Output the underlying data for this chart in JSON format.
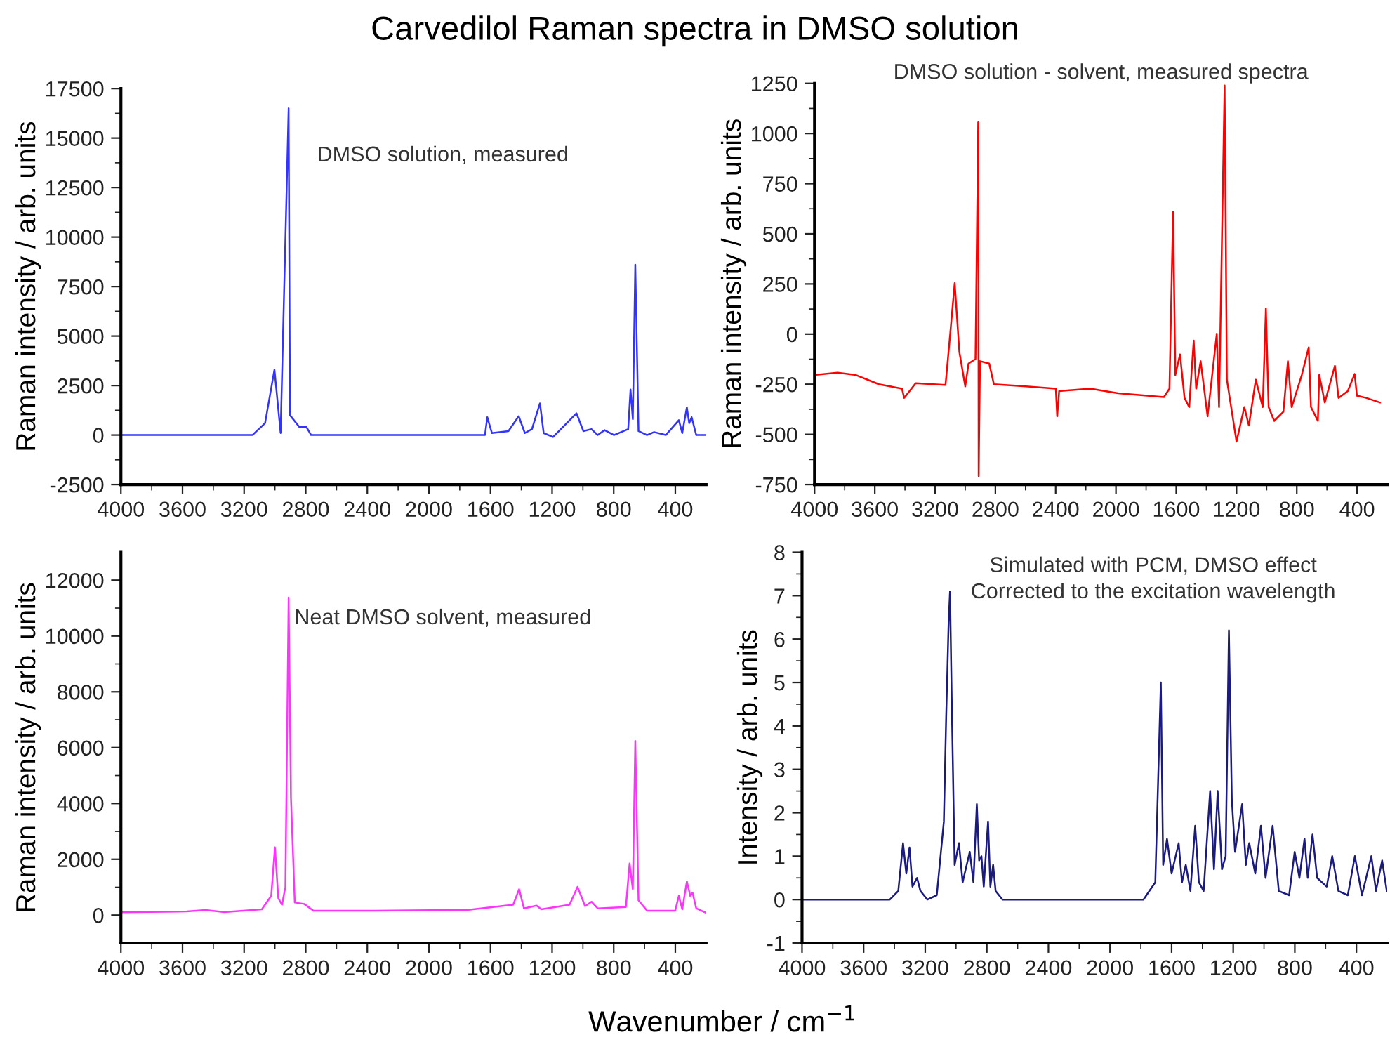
{
  "chart_data": [
    {
      "type": "line",
      "title": "Carvedilol Raman spectra in DMSO solution",
      "ylabel": "Raman intensity / arb. units",
      "annotations": [
        "DMSO solution, measured"
      ],
      "xlim": [
        4000,
        200
      ],
      "xticks": [
        4000,
        3600,
        3200,
        2800,
        2400,
        2000,
        1600,
        1200,
        800,
        400
      ],
      "ylim": [
        -2500,
        17500
      ],
      "yticks": [
        -2500,
        0,
        2500,
        5000,
        7500,
        10000,
        12500,
        15000,
        17500
      ],
      "grid": false,
      "legend": false,
      "series": [
        {
          "color": "#3333ff",
          "x": [
            4000,
            3500,
            3146,
            3064,
            3003,
            2963,
            2911,
            2902,
            2841,
            2795,
            2765,
            1636,
            1621,
            1591,
            1484,
            1417,
            1377,
            1331,
            1279,
            1255,
            1194,
            1042,
            997,
            945,
            904,
            859,
            798,
            706,
            691,
            676,
            660,
            639,
            584,
            538,
            462,
            377,
            355,
            325,
            310,
            294,
            264,
            200
          ],
          "values": [
            0,
            0,
            0,
            600,
            3300,
            100,
            16500,
            1000,
            400,
            400,
            0,
            0,
            900,
            100,
            200,
            950,
            100,
            300,
            1600,
            100,
            -100,
            1100,
            200,
            300,
            0,
            250,
            0,
            300,
            2300,
            800,
            8600,
            200,
            0,
            150,
            0,
            750,
            100,
            1400,
            600,
            900,
            0,
            0
          ]
        }
      ]
    },
    {
      "type": "line",
      "ylabel": "Raman intensity / arb. units",
      "annotations": [
        "DMSO solution - solvent, measured spectra"
      ],
      "xlim": [
        4000,
        200
      ],
      "xticks": [
        4000,
        3600,
        3200,
        2800,
        2400,
        2000,
        1600,
        1200,
        800,
        400
      ],
      "ylim": [
        -750,
        1250
      ],
      "yticks": [
        -750,
        -500,
        -250,
        0,
        250,
        500,
        750,
        1000,
        1250
      ],
      "grid": false,
      "legend": false,
      "series": [
        {
          "color": "#ff0000",
          "x": [
            4000,
            3848,
            3726,
            3573,
            3420,
            3405,
            3329,
            3131,
            3100,
            3070,
            3039,
            3000,
            2978,
            2932,
            2914,
            2911,
            2902,
            2841,
            2810,
            2597,
            2399,
            2390,
            2377,
            2170,
            1987,
            1682,
            1645,
            1621,
            1606,
            1575,
            1545,
            1514,
            1484,
            1468,
            1438,
            1392,
            1331,
            1316,
            1279,
            1264,
            1200,
            1148,
            1118,
            1072,
            1026,
            1005,
            987,
            950,
            889,
            859,
            834,
            767,
            721,
            706,
            660,
            651,
            614,
            547,
            523,
            462,
            416,
            401,
            340,
            248
          ],
          "values": [
            -204,
            -192,
            -204,
            -250,
            -272,
            -318,
            -245,
            -254,
            0,
            254,
            -89,
            -261,
            -147,
            -124,
            1056,
            -708,
            -135,
            -147,
            -250,
            -261,
            -272,
            -410,
            -284,
            -272,
            -295,
            -314,
            -272,
            609,
            -204,
            -101,
            -318,
            -364,
            -32,
            -272,
            -135,
            -410,
            2,
            -364,
            1239,
            -227,
            -536,
            -364,
            -456,
            -227,
            -364,
            128,
            -364,
            -433,
            -387,
            -135,
            -364,
            -204,
            -66,
            -364,
            -433,
            -204,
            -341,
            -158,
            -318,
            -284,
            -199,
            -307,
            -318,
            -341
          ]
        }
      ]
    },
    {
      "type": "line",
      "ylabel": "Raman intensity / arb. units",
      "xlabel": "Wavenumber / cm$^{−1}$",
      "annotations": [
        "Neat DMSO solvent, measured"
      ],
      "xlim": [
        4000,
        200
      ],
      "xticks": [
        4000,
        3600,
        3200,
        2800,
        2400,
        2000,
        1600,
        1200,
        800,
        400
      ],
      "ylim": [
        -1000,
        13000
      ],
      "yticks": [
        0,
        2000,
        4000,
        6000,
        8000,
        10000,
        12000
      ],
      "grid": false,
      "legend": false,
      "series": [
        {
          "color": "#ff33ff",
          "x": [
            4000,
            3573,
            3451,
            3329,
            3085,
            3024,
            3000,
            2978,
            2954,
            2932,
            2911,
            2896,
            2871,
            2810,
            2750,
            2353,
            1743,
            1453,
            1414,
            1383,
            1301,
            1270,
            1087,
            1035,
            986,
            944,
            904,
            721,
            697,
            676,
            660,
            639,
            584,
            401,
            377,
            355,
            325,
            303,
            288,
            264,
            200
          ],
          "values": [
            100,
            130,
            180,
            110,
            210,
            690,
            2430,
            610,
            370,
            1010,
            11380,
            4230,
            450,
            400,
            160,
            160,
            190,
            370,
            930,
            240,
            340,
            210,
            370,
            1010,
            320,
            480,
            240,
            290,
            1850,
            930,
            6240,
            530,
            160,
            160,
            690,
            210,
            1210,
            690,
            800,
            240,
            80
          ]
        }
      ]
    },
    {
      "type": "line",
      "ylabel": "Intensity / arb. units",
      "annotations": [
        "Simulated with PCM, DMSO effect\nCorrected to the excitation wavelength"
      ],
      "xlim": [
        4000,
        200
      ],
      "xticks": [
        4000,
        3600,
        3200,
        2800,
        2400,
        2000,
        1600,
        1200,
        800,
        400
      ],
      "ylim": [
        -1,
        8
      ],
      "yticks": [
        -1,
        0,
        1,
        2,
        3,
        4,
        5,
        6,
        7,
        8
      ],
      "grid": false,
      "legend": false,
      "series": [
        {
          "color": "#1a1a80",
          "x": [
            4000,
            3430,
            3375,
            3344,
            3323,
            3302,
            3283,
            3253,
            3231,
            3186,
            3125,
            3079,
            3064,
            3048,
            3039,
            3027,
            3009,
            2981,
            2957,
            2911,
            2887,
            2865,
            2850,
            2835,
            2820,
            2792,
            2777,
            2759,
            2743,
            2698,
            1783,
            1706,
            1670,
            1655,
            1630,
            1600,
            1554,
            1533,
            1508,
            1478,
            1447,
            1423,
            1392,
            1350,
            1325,
            1301,
            1273,
            1249,
            1228,
            1209,
            1188,
            1142,
            1118,
            1096,
            1057,
            1020,
            990,
            944,
            904,
            837,
            801,
            770,
            737,
            716,
            685,
            655,
            593,
            557,
            517,
            456,
            410,
            364,
            303,
            273,
            233,
            203
          ],
          "values": [
            0,
            0,
            0.2,
            1.3,
            0.6,
            1.2,
            0.3,
            0.5,
            0.2,
            0,
            0.1,
            1.8,
            4.2,
            6.4,
            7.1,
            4.4,
            0.8,
            1.3,
            0.4,
            1.1,
            0.4,
            2.2,
            0.9,
            1.0,
            0.3,
            1.8,
            0.3,
            0.8,
            0.2,
            0,
            0,
            0.4,
            5.0,
            0.8,
            1.4,
            0.6,
            1.3,
            0.4,
            0.8,
            0.2,
            1.7,
            0.4,
            0.2,
            2.5,
            0.7,
            2.5,
            0.7,
            1.0,
            6.2,
            2.3,
            1.1,
            2.2,
            0.8,
            1.3,
            0.6,
            1.7,
            0.5,
            1.7,
            0.2,
            0.1,
            1.1,
            0.5,
            1.4,
            0.5,
            1.5,
            0.5,
            0.3,
            1.0,
            0.2,
            0.1,
            1.0,
            0.1,
            1.0,
            0.2,
            0.9,
            0.2
          ]
        }
      ]
    }
  ]
}
